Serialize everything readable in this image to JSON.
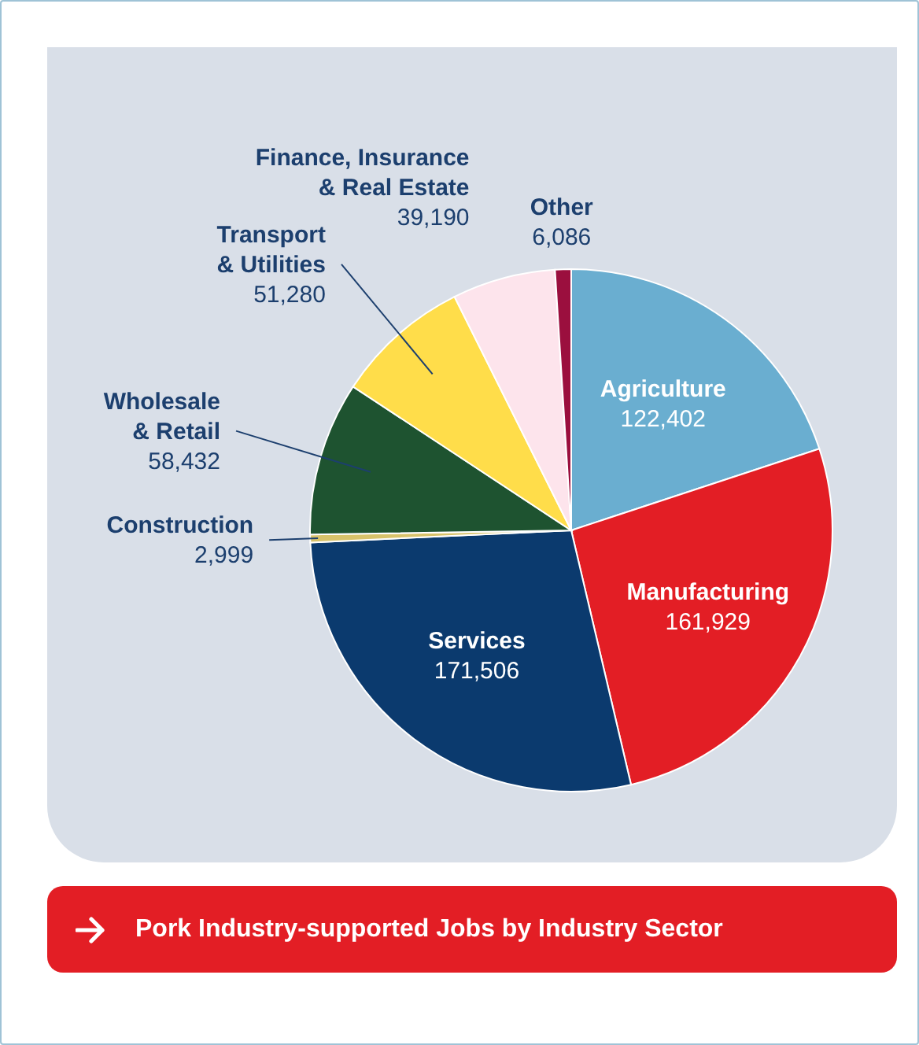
{
  "chart_data": {
    "type": "pie",
    "title": "Pork Industry-supported Jobs by Industry Sector",
    "categories": [
      "Agriculture",
      "Manufacturing",
      "Services",
      "Construction",
      "Wholesale & Retail",
      "Transport & Utilities",
      "Finance, Insurance & Real Estate",
      "Other"
    ],
    "values": [
      122402,
      161929,
      171506,
      2999,
      58432,
      51280,
      39190,
      6086
    ],
    "colors": [
      "#6aaed0",
      "#e31e25",
      "#0b3a6e",
      "#d8c26a",
      "#1e5330",
      "#ffdd4a",
      "#fde4ec",
      "#9b0f3e"
    ],
    "value_labels": [
      "122,402",
      "161,929",
      "171,506",
      "2,999",
      "58,432",
      "51,280",
      "39,190",
      "6,086"
    ],
    "legend": false
  }
}
